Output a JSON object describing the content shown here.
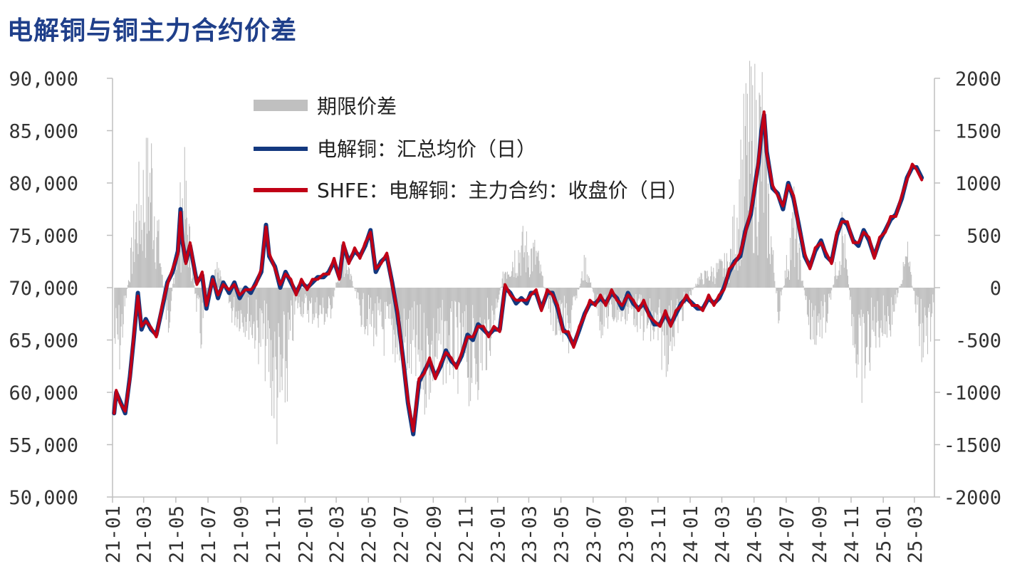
{
  "title": "电解铜与铜主力合约价差",
  "chart_data": {
    "type": "line",
    "title": "电解铜与铜主力合约价差",
    "x_tick_labels": [
      "21-01",
      "21-03",
      "21-05",
      "21-07",
      "21-09",
      "21-11",
      "22-01",
      "22-03",
      "22-05",
      "22-07",
      "22-09",
      "22-11",
      "23-01",
      "23-03",
      "23-05",
      "23-07",
      "23-09",
      "23-11",
      "24-01",
      "24-03",
      "24-05",
      "24-07",
      "24-09",
      "24-11",
      "25-01",
      "25-03"
    ],
    "y_left": {
      "ticks": [
        "50,000",
        "55,000",
        "60,000",
        "65,000",
        "70,000",
        "75,000",
        "80,000",
        "85,000",
        "90,000"
      ],
      "ylim": [
        50000,
        90000
      ]
    },
    "y_right": {
      "ticks": [
        "-2000",
        "-1500",
        "-1000",
        "-500",
        "0",
        "500",
        "1000",
        "1500",
        "2000"
      ],
      "ylim": [
        -2000,
        2000
      ]
    },
    "legend": [
      "期限价差",
      "电解铜：汇总均价（日）",
      "SHFE：电解铜：主力合约：收盘价（日）"
    ],
    "colors": {
      "spread": "#c0c0c0",
      "spot": "#13387f",
      "futures": "#c00016"
    },
    "series_price": {
      "x": [
        "2021-01-04",
        "2021-01-08",
        "2021-01-15",
        "2021-01-25",
        "2021-02-03",
        "2021-02-10",
        "2021-02-18",
        "2021-02-25",
        "2021-03-05",
        "2021-03-15",
        "2021-03-25",
        "2021-04-05",
        "2021-04-15",
        "2021-04-25",
        "2021-05-05",
        "2021-05-10",
        "2021-05-13",
        "2021-05-20",
        "2021-05-28",
        "2021-06-10",
        "2021-06-20",
        "2021-06-28",
        "2021-07-10",
        "2021-07-20",
        "2021-07-30",
        "2021-08-10",
        "2021-08-20",
        "2021-08-30",
        "2021-09-10",
        "2021-09-20",
        "2021-09-30",
        "2021-10-10",
        "2021-10-19",
        "2021-10-25",
        "2021-11-05",
        "2021-11-15",
        "2021-11-25",
        "2021-12-05",
        "2021-12-15",
        "2021-12-25",
        "2022-01-05",
        "2022-01-15",
        "2022-01-25",
        "2022-02-05",
        "2022-02-15",
        "2022-02-25",
        "2022-03-07",
        "2022-03-15",
        "2022-03-25",
        "2022-04-05",
        "2022-04-15",
        "2022-04-25",
        "2022-05-05",
        "2022-05-15",
        "2022-05-25",
        "2022-06-05",
        "2022-06-15",
        "2022-06-25",
        "2022-07-05",
        "2022-07-15",
        "2022-07-25",
        "2022-08-05",
        "2022-08-15",
        "2022-08-25",
        "2022-09-05",
        "2022-09-15",
        "2022-09-25",
        "2022-10-05",
        "2022-10-15",
        "2022-10-25",
        "2022-11-05",
        "2022-11-15",
        "2022-11-25",
        "2022-12-05",
        "2022-12-15",
        "2022-12-25",
        "2023-01-05",
        "2023-01-15",
        "2023-01-25",
        "2023-02-05",
        "2023-02-15",
        "2023-02-25",
        "2023-03-05",
        "2023-03-15",
        "2023-03-25",
        "2023-04-05",
        "2023-04-15",
        "2023-04-25",
        "2023-05-05",
        "2023-05-15",
        "2023-05-25",
        "2023-06-05",
        "2023-06-15",
        "2023-06-25",
        "2023-07-05",
        "2023-07-15",
        "2023-07-25",
        "2023-08-05",
        "2023-08-15",
        "2023-08-25",
        "2023-09-05",
        "2023-09-15",
        "2023-09-25",
        "2023-10-05",
        "2023-10-15",
        "2023-10-25",
        "2023-11-05",
        "2023-11-15",
        "2023-11-25",
        "2023-12-05",
        "2023-12-15",
        "2023-12-25",
        "2024-01-05",
        "2024-01-15",
        "2024-01-25",
        "2024-02-05",
        "2024-02-15",
        "2024-02-25",
        "2024-03-05",
        "2024-03-15",
        "2024-03-25",
        "2024-04-05",
        "2024-04-15",
        "2024-04-25",
        "2024-05-05",
        "2024-05-10",
        "2024-05-15",
        "2024-05-20",
        "2024-05-25",
        "2024-06-05",
        "2024-06-15",
        "2024-06-25",
        "2024-07-05",
        "2024-07-15",
        "2024-07-25",
        "2024-08-05",
        "2024-08-15",
        "2024-08-25",
        "2024-09-05",
        "2024-09-15",
        "2024-09-25",
        "2024-10-05",
        "2024-10-15",
        "2024-10-25",
        "2024-11-05",
        "2024-11-15",
        "2024-11-25",
        "2024-12-05",
        "2024-12-15",
        "2024-12-25",
        "2025-01-05",
        "2025-01-15",
        "2025-01-25",
        "2025-02-05",
        "2025-02-15",
        "2025-02-25",
        "2025-03-05",
        "2025-03-15",
        "2025-03-25",
        "2025-04-05"
      ],
      "series": [
        {
          "name": "电解铜：汇总均价（日）",
          "values": [
            58000,
            60000,
            59200,
            58000,
            61500,
            65000,
            69500,
            66000,
            67000,
            66000,
            65500,
            68000,
            70500,
            71500,
            73500,
            77500,
            74500,
            72500,
            74000,
            70500,
            71200,
            68000,
            71000,
            69000,
            70500,
            69500,
            70500,
            69000,
            70000,
            69500,
            70500,
            71500,
            76000,
            73000,
            72000,
            70000,
            71500,
            70500,
            69500,
            70500,
            70000,
            70500,
            71000,
            71000,
            71500,
            72500,
            71000,
            74000,
            72500,
            73500,
            73000,
            74000,
            75500,
            71500,
            72500,
            73000,
            70500,
            67500,
            63500,
            59000,
            56000,
            61000,
            62000,
            63000,
            61500,
            62500,
            64000,
            63000,
            62500,
            63500,
            65500,
            65000,
            66500,
            66000,
            65500,
            66000,
            66000,
            70000,
            69500,
            68500,
            69000,
            68500,
            69500,
            69500,
            68000,
            69500,
            69500,
            68000,
            66000,
            65500,
            64500,
            66000,
            67500,
            68500,
            68500,
            69000,
            68500,
            69500,
            69000,
            68000,
            69500,
            68500,
            68000,
            68500,
            67500,
            66500,
            66500,
            67500,
            66500,
            67500,
            68500,
            69000,
            68500,
            68000,
            68000,
            69000,
            68500,
            69000,
            70000,
            71500,
            72500,
            73000,
            75500,
            77000,
            80500,
            82000,
            85000,
            86500,
            83000,
            79500,
            79000,
            77500,
            80000,
            78500,
            76000,
            73000,
            72000,
            73500,
            74500,
            73000,
            72500,
            75000,
            76500,
            76000,
            74500,
            74000,
            75500,
            74500,
            73000,
            74500,
            75500,
            76500,
            77000,
            78500,
            80500,
            81500,
            81500,
            80500
          ]
        },
        {
          "name": "SHFE：电解铜：主力合约：收盘价（日）",
          "values": [
            58000,
            60200,
            59000,
            58200,
            61300,
            65300,
            69200,
            66300,
            66800,
            66200,
            65300,
            68300,
            70300,
            71800,
            73200,
            77200,
            74800,
            72300,
            74300,
            70300,
            71500,
            68300,
            70800,
            69300,
            70300,
            69800,
            70300,
            69300,
            69800,
            69800,
            70300,
            71800,
            75800,
            73300,
            71800,
            70300,
            71300,
            70800,
            69300,
            70800,
            69800,
            70800,
            70800,
            71300,
            71300,
            72800,
            70800,
            74300,
            72300,
            73800,
            72800,
            74300,
            75300,
            71800,
            72300,
            73300,
            70300,
            67800,
            63300,
            59300,
            56300,
            61300,
            61800,
            63300,
            61300,
            62800,
            63800,
            63300,
            62300,
            63800,
            65300,
            65300,
            66300,
            66300,
            65300,
            66300,
            65800,
            70300,
            69300,
            68800,
            68800,
            68800,
            69300,
            69800,
            67800,
            69800,
            69300,
            68300,
            65800,
            65800,
            64300,
            66300,
            67300,
            68800,
            68300,
            69300,
            68300,
            69800,
            68800,
            68300,
            69300,
            68800,
            67800,
            68800,
            67300,
            66800,
            66300,
            67800,
            66300,
            67800,
            68300,
            69300,
            68300,
            68300,
            67800,
            69300,
            68300,
            69300,
            69800,
            71800,
            72300,
            73300,
            75300,
            77300,
            80300,
            82300,
            84800,
            86800,
            82800,
            79800,
            78800,
            77800,
            79800,
            78800,
            75800,
            73300,
            71800,
            73800,
            74300,
            73300,
            72300,
            75300,
            76300,
            76300,
            74300,
            74300,
            75300,
            74800,
            72800,
            74800,
            75300,
            76800,
            76800,
            78800,
            80300,
            81800,
            81300,
            80300
          ]
        }
      ]
    },
    "series_spread": {
      "name": "期限价差",
      "x": [
        "2021-01",
        "2021-02",
        "2021-03",
        "2021-04",
        "2021-05",
        "2021-06",
        "2021-07",
        "2021-08",
        "2021-09",
        "2021-10",
        "2021-11",
        "2021-12",
        "2022-01",
        "2022-02",
        "2022-03",
        "2022-04",
        "2022-05",
        "2022-06",
        "2022-07",
        "2022-08",
        "2022-09",
        "2022-10",
        "2022-11",
        "2022-12",
        "2023-01",
        "2023-02",
        "2023-03",
        "2023-04",
        "2023-05",
        "2023-06",
        "2023-07",
        "2023-08",
        "2023-09",
        "2023-10",
        "2023-11",
        "2023-12",
        "2024-01",
        "2024-02",
        "2024-03",
        "2024-04",
        "2024-05",
        "2024-06",
        "2024-07",
        "2024-08",
        "2024-09",
        "2024-10",
        "2024-11",
        "2024-12",
        "2025-01",
        "2025-02",
        "2025-03",
        "2025-04"
      ],
      "values": [
        -700,
        900,
        1400,
        -500,
        1200,
        -600,
        300,
        -300,
        -400,
        -700,
        -1500,
        -200,
        -300,
        -350,
        500,
        -300,
        -500,
        -600,
        -800,
        -1000,
        -750,
        -800,
        -1000,
        -600,
        250,
        500,
        400,
        -400,
        -550,
        300,
        -400,
        -300,
        -300,
        -500,
        -700,
        -300,
        100,
        200,
        300,
        1700,
        1900,
        -350,
        800,
        -500,
        -400,
        700,
        -1100,
        -500,
        -400,
        400,
        -700,
        -250
      ]
    }
  }
}
